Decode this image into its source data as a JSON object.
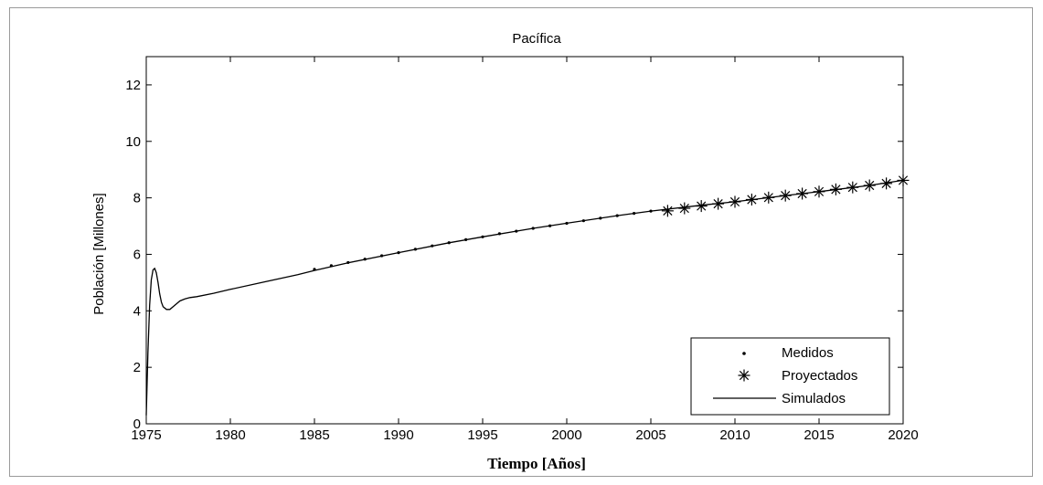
{
  "chart_data": {
    "type": "line",
    "title": "Pacífica",
    "xlabel": "Tiempo [Años]",
    "ylabel": "Población [Millones]",
    "xlim": [
      1975,
      2020
    ],
    "ylim": [
      0,
      13
    ],
    "xticks": [
      1975,
      1980,
      1985,
      1990,
      1995,
      2000,
      2005,
      2010,
      2015,
      2020
    ],
    "yticks": [
      0,
      2,
      4,
      6,
      8,
      10,
      12
    ],
    "grid": false,
    "legend_position": "bottom-right",
    "series": [
      {
        "name": "Medidos",
        "marker": "dot",
        "x": [
          1985,
          1986,
          1987,
          1988,
          1989,
          1990,
          1991,
          1992,
          1993,
          1994,
          1995,
          1996,
          1997,
          1998,
          1999,
          2000,
          2001,
          2002,
          2003,
          2004,
          2005
        ],
        "y": [
          5.47,
          5.6,
          5.71,
          5.83,
          5.95,
          6.06,
          6.18,
          6.3,
          6.41,
          6.52,
          6.62,
          6.73,
          6.82,
          6.92,
          7.01,
          7.1,
          7.19,
          7.28,
          7.37,
          7.45,
          7.53
        ]
      },
      {
        "name": "Proyectados",
        "marker": "asterisk",
        "x": [
          2006,
          2007,
          2008,
          2009,
          2010,
          2011,
          2012,
          2013,
          2014,
          2015,
          2016,
          2017,
          2018,
          2019,
          2020
        ],
        "y": [
          7.54,
          7.63,
          7.71,
          7.79,
          7.86,
          7.94,
          8.01,
          8.08,
          8.15,
          8.22,
          8.3,
          8.37,
          8.44,
          8.51,
          8.62
        ]
      },
      {
        "name": "Simulados",
        "marker": "line",
        "x": [
          1975.0,
          1975.1,
          1975.2,
          1975.3,
          1975.4,
          1975.5,
          1975.6,
          1975.7,
          1975.8,
          1975.9,
          1976.0,
          1976.2,
          1976.4,
          1976.6,
          1976.8,
          1977.0,
          1977.3,
          1977.6,
          1978.0,
          1979,
          1980,
          1982,
          1984,
          1985,
          1987,
          1990,
          1993,
          1995,
          1998,
          2000,
          2003,
          2005,
          2008,
          2010,
          2013,
          2015,
          2018,
          2020
        ],
        "y": [
          0.3,
          2.5,
          4.2,
          5.1,
          5.45,
          5.5,
          5.35,
          5.0,
          4.6,
          4.3,
          4.15,
          4.05,
          4.05,
          4.15,
          4.25,
          4.35,
          4.42,
          4.47,
          4.5,
          4.62,
          4.76,
          5.02,
          5.28,
          5.43,
          5.7,
          6.06,
          6.41,
          6.62,
          6.92,
          7.1,
          7.37,
          7.53,
          7.74,
          7.86,
          8.08,
          8.22,
          8.44,
          8.62
        ]
      }
    ]
  }
}
